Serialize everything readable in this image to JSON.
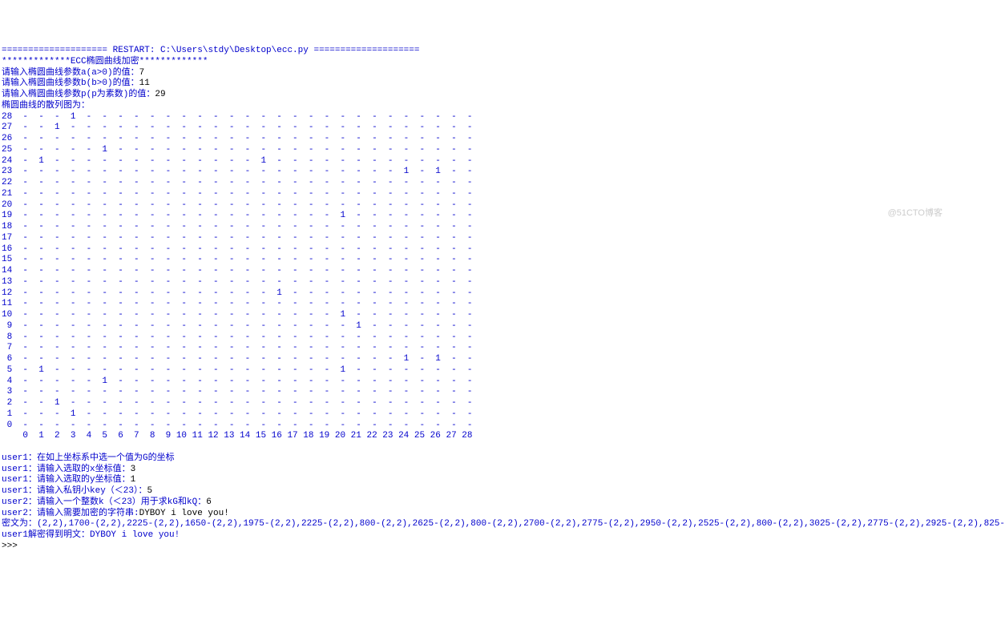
{
  "restart_line": "==================== RESTART: C:\\Users\\stdy\\Desktop\\ecc.py ====================",
  "banner": "*************ECC椭圆曲线加密*************",
  "prompt_a": "请输入椭圆曲线参数a(a>0)的值：",
  "val_a": "7",
  "prompt_b": "请输入椭圆曲线参数b(b>0)的值：",
  "val_b": "11",
  "prompt_p": "请输入椭圆曲线参数p(p为素数)的值：",
  "val_p": "29",
  "scatter_title": "椭圆曲线的散列图为：",
  "grid": {
    "rows": [
      {
        "y": 28,
        "cells": [
          "-",
          "-",
          "-",
          "1",
          "-",
          "-",
          "-",
          "-",
          "-",
          "-",
          "-",
          "-",
          "-",
          "-",
          "-",
          "-",
          "-",
          "-",
          "-",
          "-",
          "-",
          "-",
          "-",
          "-",
          "-",
          "-",
          "-",
          "-",
          "-"
        ]
      },
      {
        "y": 27,
        "cells": [
          "-",
          "-",
          "1",
          "-",
          "-",
          "-",
          "-",
          "-",
          "-",
          "-",
          "-",
          "-",
          "-",
          "-",
          "-",
          "-",
          "-",
          "-",
          "-",
          "-",
          "-",
          "-",
          "-",
          "-",
          "-",
          "-",
          "-",
          "-",
          "-"
        ]
      },
      {
        "y": 26,
        "cells": [
          "-",
          "-",
          "-",
          "-",
          "-",
          "-",
          "-",
          "-",
          "-",
          "-",
          "-",
          "-",
          "-",
          "-",
          "-",
          "-",
          "-",
          "-",
          "-",
          "-",
          "-",
          "-",
          "-",
          "-",
          "-",
          "-",
          "-",
          "-",
          "-"
        ]
      },
      {
        "y": 25,
        "cells": [
          "-",
          "-",
          "-",
          "-",
          "-",
          "1",
          "-",
          "-",
          "-",
          "-",
          "-",
          "-",
          "-",
          "-",
          "-",
          "-",
          "-",
          "-",
          "-",
          "-",
          "-",
          "-",
          "-",
          "-",
          "-",
          "-",
          "-",
          "-",
          "-"
        ]
      },
      {
        "y": 24,
        "cells": [
          "-",
          "1",
          "-",
          "-",
          "-",
          "-",
          "-",
          "-",
          "-",
          "-",
          "-",
          "-",
          "-",
          "-",
          "-",
          "1",
          "-",
          "-",
          "-",
          "-",
          "-",
          "-",
          "-",
          "-",
          "-",
          "-",
          "-",
          "-",
          "-"
        ]
      },
      {
        "y": 23,
        "cells": [
          "-",
          "-",
          "-",
          "-",
          "-",
          "-",
          "-",
          "-",
          "-",
          "-",
          "-",
          "-",
          "-",
          "-",
          "-",
          "-",
          "-",
          "-",
          "-",
          "-",
          "-",
          "-",
          "-",
          "-",
          "1",
          "-",
          "1",
          "-",
          "-"
        ]
      },
      {
        "y": 22,
        "cells": [
          "-",
          "-",
          "-",
          "-",
          "-",
          "-",
          "-",
          "-",
          "-",
          "-",
          "-",
          "-",
          "-",
          "-",
          "-",
          "-",
          "-",
          "-",
          "-",
          "-",
          "-",
          "-",
          "-",
          "-",
          "-",
          "-",
          "-",
          "-",
          "-"
        ]
      },
      {
        "y": 21,
        "cells": [
          "-",
          "-",
          "-",
          "-",
          "-",
          "-",
          "-",
          "-",
          "-",
          "-",
          "-",
          "-",
          "-",
          "-",
          "-",
          "-",
          "-",
          "-",
          "-",
          "-",
          "-",
          "-",
          "-",
          "-",
          "-",
          "-",
          "-",
          "-",
          "-"
        ]
      },
      {
        "y": 20,
        "cells": [
          "-",
          "-",
          "-",
          "-",
          "-",
          "-",
          "-",
          "-",
          "-",
          "-",
          "-",
          "-",
          "-",
          "-",
          "-",
          "-",
          "-",
          "-",
          "-",
          "-",
          "-",
          "-",
          "-",
          "-",
          "-",
          "-",
          "-",
          "-",
          "-"
        ]
      },
      {
        "y": 19,
        "cells": [
          "-",
          "-",
          "-",
          "-",
          "-",
          "-",
          "-",
          "-",
          "-",
          "-",
          "-",
          "-",
          "-",
          "-",
          "-",
          "-",
          "-",
          "-",
          "-",
          "-",
          "1",
          "-",
          "-",
          "-",
          "-",
          "-",
          "-",
          "-",
          "-"
        ]
      },
      {
        "y": 18,
        "cells": [
          "-",
          "-",
          "-",
          "-",
          "-",
          "-",
          "-",
          "-",
          "-",
          "-",
          "-",
          "-",
          "-",
          "-",
          "-",
          "-",
          "-",
          "-",
          "-",
          "-",
          "-",
          "-",
          "-",
          "-",
          "-",
          "-",
          "-",
          "-",
          "-"
        ]
      },
      {
        "y": 17,
        "cells": [
          "-",
          "-",
          "-",
          "-",
          "-",
          "-",
          "-",
          "-",
          "-",
          "-",
          "-",
          "-",
          "-",
          "-",
          "-",
          "-",
          "-",
          "-",
          "-",
          "-",
          "-",
          "-",
          "-",
          "-",
          "-",
          "-",
          "-",
          "-",
          "-"
        ]
      },
      {
        "y": 16,
        "cells": [
          "-",
          "-",
          "-",
          "-",
          "-",
          "-",
          "-",
          "-",
          "-",
          "-",
          "-",
          "-",
          "-",
          "-",
          "-",
          "-",
          "-",
          "-",
          "-",
          "-",
          "-",
          "-",
          "-",
          "-",
          "-",
          "-",
          "-",
          "-",
          "-"
        ]
      },
      {
        "y": 15,
        "cells": [
          "-",
          "-",
          "-",
          "-",
          "-",
          "-",
          "-",
          "-",
          "-",
          "-",
          "-",
          "-",
          "-",
          "-",
          "-",
          "-",
          "-",
          "-",
          "-",
          "-",
          "-",
          "-",
          "-",
          "-",
          "-",
          "-",
          "-",
          "-",
          "-"
        ]
      },
      {
        "y": 14,
        "cells": [
          "-",
          "-",
          "-",
          "-",
          "-",
          "-",
          "-",
          "-",
          "-",
          "-",
          "-",
          "-",
          "-",
          "-",
          "-",
          "-",
          "-",
          "-",
          "-",
          "-",
          "-",
          "-",
          "-",
          "-",
          "-",
          "-",
          "-",
          "-",
          "-"
        ]
      },
      {
        "y": 13,
        "cells": [
          "-",
          "-",
          "-",
          "-",
          "-",
          "-",
          "-",
          "-",
          "-",
          "-",
          "-",
          "-",
          "-",
          "-",
          "-",
          "-",
          "-",
          "-",
          "-",
          "-",
          "-",
          "-",
          "-",
          "-",
          "-",
          "-",
          "-",
          "-",
          "-"
        ]
      },
      {
        "y": 12,
        "cells": [
          "-",
          "-",
          "-",
          "-",
          "-",
          "-",
          "-",
          "-",
          "-",
          "-",
          "-",
          "-",
          "-",
          "-",
          "-",
          "-",
          "1",
          "-",
          "-",
          "-",
          "-",
          "-",
          "-",
          "-",
          "-",
          "-",
          "-",
          "-",
          "-"
        ]
      },
      {
        "y": 11,
        "cells": [
          "-",
          "-",
          "-",
          "-",
          "-",
          "-",
          "-",
          "-",
          "-",
          "-",
          "-",
          "-",
          "-",
          "-",
          "-",
          "-",
          "-",
          "-",
          "-",
          "-",
          "-",
          "-",
          "-",
          "-",
          "-",
          "-",
          "-",
          "-",
          "-"
        ]
      },
      {
        "y": 10,
        "cells": [
          "-",
          "-",
          "-",
          "-",
          "-",
          "-",
          "-",
          "-",
          "-",
          "-",
          "-",
          "-",
          "-",
          "-",
          "-",
          "-",
          "-",
          "-",
          "-",
          "-",
          "1",
          "-",
          "-",
          "-",
          "-",
          "-",
          "-",
          "-",
          "-"
        ]
      },
      {
        "y": 9,
        "cells": [
          "-",
          "-",
          "-",
          "-",
          "-",
          "-",
          "-",
          "-",
          "-",
          "-",
          "-",
          "-",
          "-",
          "-",
          "-",
          "-",
          "-",
          "-",
          "-",
          "-",
          "-",
          "1",
          "-",
          "-",
          "-",
          "-",
          "-",
          "-",
          "-"
        ]
      },
      {
        "y": 8,
        "cells": [
          "-",
          "-",
          "-",
          "-",
          "-",
          "-",
          "-",
          "-",
          "-",
          "-",
          "-",
          "-",
          "-",
          "-",
          "-",
          "-",
          "-",
          "-",
          "-",
          "-",
          "-",
          "-",
          "-",
          "-",
          "-",
          "-",
          "-",
          "-",
          "-"
        ]
      },
      {
        "y": 7,
        "cells": [
          "-",
          "-",
          "-",
          "-",
          "-",
          "-",
          "-",
          "-",
          "-",
          "-",
          "-",
          "-",
          "-",
          "-",
          "-",
          "-",
          "-",
          "-",
          "-",
          "-",
          "-",
          "-",
          "-",
          "-",
          "-",
          "-",
          "-",
          "-",
          "-"
        ]
      },
      {
        "y": 6,
        "cells": [
          "-",
          "-",
          "-",
          "-",
          "-",
          "-",
          "-",
          "-",
          "-",
          "-",
          "-",
          "-",
          "-",
          "-",
          "-",
          "-",
          "-",
          "-",
          "-",
          "-",
          "-",
          "-",
          "-",
          "-",
          "1",
          "-",
          "1",
          "-",
          "-"
        ]
      },
      {
        "y": 5,
        "cells": [
          "-",
          "1",
          "-",
          "-",
          "-",
          "-",
          "-",
          "-",
          "-",
          "-",
          "-",
          "-",
          "-",
          "-",
          "-",
          "-",
          "-",
          "-",
          "-",
          "-",
          "1",
          "-",
          "-",
          "-",
          "-",
          "-",
          "-",
          "-",
          "-"
        ]
      },
      {
        "y": 4,
        "cells": [
          "-",
          "-",
          "-",
          "-",
          "-",
          "1",
          "-",
          "-",
          "-",
          "-",
          "-",
          "-",
          "-",
          "-",
          "-",
          "-",
          "-",
          "-",
          "-",
          "-",
          "-",
          "-",
          "-",
          "-",
          "-",
          "-",
          "-",
          "-",
          "-"
        ]
      },
      {
        "y": 3,
        "cells": [
          "-",
          "-",
          "-",
          "-",
          "-",
          "-",
          "-",
          "-",
          "-",
          "-",
          "-",
          "-",
          "-",
          "-",
          "-",
          "-",
          "-",
          "-",
          "-",
          "-",
          "-",
          "-",
          "-",
          "-",
          "-",
          "-",
          "-",
          "-",
          "-"
        ]
      },
      {
        "y": 2,
        "cells": [
          "-",
          "-",
          "1",
          "-",
          "-",
          "-",
          "-",
          "-",
          "-",
          "-",
          "-",
          "-",
          "-",
          "-",
          "-",
          "-",
          "-",
          "-",
          "-",
          "-",
          "-",
          "-",
          "-",
          "-",
          "-",
          "-",
          "-",
          "-",
          "-"
        ]
      },
      {
        "y": 1,
        "cells": [
          "-",
          "-",
          "-",
          "1",
          "-",
          "-",
          "-",
          "-",
          "-",
          "-",
          "-",
          "-",
          "-",
          "-",
          "-",
          "-",
          "-",
          "-",
          "-",
          "-",
          "-",
          "-",
          "-",
          "-",
          "-",
          "-",
          "-",
          "-",
          "-"
        ]
      },
      {
        "y": 0,
        "cells": [
          "-",
          "-",
          "-",
          "-",
          "-",
          "-",
          "-",
          "-",
          "-",
          "-",
          "-",
          "-",
          "-",
          "-",
          "-",
          "-",
          "-",
          "-",
          "-",
          "-",
          "-",
          "-",
          "-",
          "-",
          "-",
          "-",
          "-",
          "-",
          "-"
        ]
      }
    ],
    "xaxis": [
      0,
      1,
      2,
      3,
      4,
      5,
      6,
      7,
      8,
      9,
      10,
      11,
      12,
      13,
      14,
      15,
      16,
      17,
      18,
      19,
      20,
      21,
      22,
      23,
      24,
      25,
      26,
      27,
      28
    ]
  },
  "blank_line": "",
  "user1_prompt_g": "user1：在如上坐标系中选一个值为G的坐标",
  "user1_prompt_x": "user1：请输入选取的x坐标值：",
  "user1_val_x": "3",
  "user1_prompt_y": "user1：请输入选取的y坐标值：",
  "user1_val_y": "1",
  "user1_prompt_key": "user1：请输入私钥小key（＜23）：",
  "user1_val_key": "5",
  "user2_prompt_k": "user2：请输入一个整数k（＜23）用于求kG和kQ：",
  "user2_val_k": "6",
  "user2_prompt_str": "user2：请输入需要加密的字符串:",
  "user2_val_str": "DYBOY i love you!",
  "cipher_label": "密文为：",
  "cipher_value": "(2,2),1700-(2,2),2225-(2,2),1650-(2,2),1975-(2,2),2225-(2,2),800-(2,2),2625-(2,2),800-(2,2),2700-(2,2),2775-(2,2),2950-(2,2),2525-(2,2),800-(2,2),3025-(2,2),2775-(2,2),2925-(2,2),825-",
  "plain_label": "user1解密得到明文：",
  "plain_value": "DYBOY i love you!",
  "prompt_cursor": ">>> ",
  "watermark": "@51CTO博客"
}
